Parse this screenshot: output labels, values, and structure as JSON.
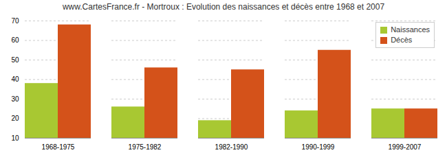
{
  "chart_data": {
    "type": "bar",
    "title": "www.CartesFrance.fr - Mortroux : Evolution des naissances et décès entre 1968 et 2007",
    "categories": [
      "1968-1975",
      "1975-1982",
      "1982-1990",
      "1990-1999",
      "1999-2007"
    ],
    "series": [
      {
        "name": "Naissances",
        "color": "#a8c832",
        "values": [
          38,
          26,
          19,
          24,
          25
        ]
      },
      {
        "name": "Décès",
        "color": "#d4521a",
        "values": [
          68,
          46,
          45,
          55,
          25
        ]
      }
    ],
    "ylim": [
      10,
      70
    ],
    "yticks": [
      10,
      20,
      30,
      40,
      50,
      60,
      70
    ],
    "grid": true,
    "legend": "upper right"
  }
}
